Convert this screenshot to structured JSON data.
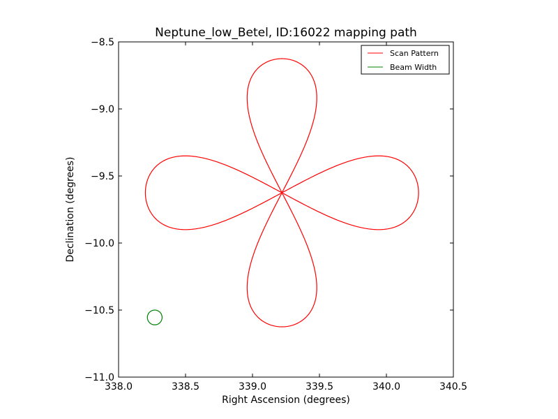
{
  "chart_data": {
    "type": "line",
    "title": "Neptune_low_Betel, ID:16022 mapping path",
    "xlabel": "Right Ascension (degrees)",
    "ylabel": "Declination (degrees)",
    "xlim": [
      338.0,
      340.5
    ],
    "ylim": [
      -11.0,
      -8.5
    ],
    "x_ticks": [
      338.0,
      338.5,
      339.0,
      339.5,
      340.0,
      340.5
    ],
    "x_tick_labels": [
      "338.0",
      "338.5",
      "339.0",
      "339.5",
      "340.0",
      "340.5"
    ],
    "y_ticks": [
      -8.5,
      -9.0,
      -9.5,
      -10.0,
      -10.5,
      -11.0
    ],
    "y_tick_labels": [
      "−8.5",
      "−9.0",
      "−9.5",
      "−10.0",
      "−10.5",
      "−11.0"
    ],
    "grid": false,
    "legend_position": "top-right",
    "series": [
      {
        "name": "Scan Pattern",
        "color": "#ff0000",
        "center": [
          339.22,
          -9.625
        ],
        "loops": [
          {
            "direction": "north",
            "length": 1.0,
            "half_width": 0.26
          },
          {
            "direction": "east",
            "length": 1.02,
            "half_width": 0.275
          },
          {
            "direction": "south",
            "length": 1.0,
            "half_width": 0.26
          },
          {
            "direction": "west",
            "length": 1.02,
            "half_width": 0.275
          }
        ]
      },
      {
        "name": "Beam Width",
        "color": "#008000",
        "center": [
          338.27,
          -10.555
        ],
        "radius": 0.055
      }
    ]
  }
}
